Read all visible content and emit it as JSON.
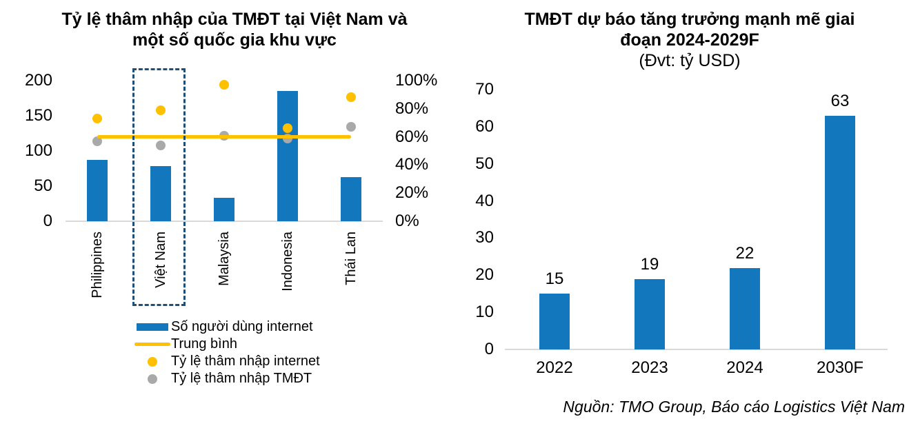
{
  "source_note": "Nguồn: TMO Group, Báo cáo Logistics Việt Nam",
  "colors": {
    "bar_blue": "#1377BD",
    "line_yellow": "#FFC000",
    "dot_gray": "#A9A9A9",
    "highlight_border": "#1F4E79",
    "axis_line": "#D9D9D9",
    "text": "#000000"
  },
  "chart_data": [
    {
      "id": "penetration_combo",
      "type": "combo",
      "title": "Tỷ lệ thâm nhập của TMĐT tại Việt Nam và một số quốc gia khu vực",
      "title_lines": [
        "Tỷ lệ thâm nhập của TMĐT tại Việt Nam và",
        "một số quốc gia khu vực"
      ],
      "categories": [
        "Philippines",
        "Việt Nam",
        "Malaysia",
        "Indonesia",
        "Thái Lan"
      ],
      "highlighted_category": "Việt Nam",
      "axes": {
        "left": {
          "ticks": [
            "200",
            "150",
            "100",
            "50",
            "0"
          ],
          "min": 0,
          "max": 200
        },
        "right": {
          "ticks": [
            "100%",
            "80%",
            "60%",
            "40%",
            "20%",
            "0%"
          ],
          "min": 0,
          "max": 100
        }
      },
      "grid": false,
      "legend_position": "bottom",
      "series": [
        {
          "name": "Số người dùng internet",
          "type": "bar",
          "axis": "left",
          "color_key": "blue",
          "values": [
            87,
            78,
            33,
            185,
            63
          ]
        },
        {
          "name": "Trung bình",
          "type": "line",
          "axis": "right",
          "color_key": "yellow",
          "values": [
            60,
            60,
            60,
            60,
            60
          ]
        },
        {
          "name": "Tỷ lệ thâm nhập internet",
          "type": "scatter",
          "axis": "right",
          "color_key": "yellow",
          "values": [
            73,
            79,
            97,
            66,
            88
          ]
        },
        {
          "name": "Tỷ lệ thâm nhập TMĐT",
          "type": "scatter",
          "axis": "right",
          "color_key": "gray",
          "values": [
            57,
            54,
            61,
            59,
            67
          ]
        }
      ],
      "legend": [
        {
          "label": "Số người dùng internet",
          "marker": "bar"
        },
        {
          "label": "Trung bình",
          "marker": "line"
        },
        {
          "label": "Tỷ lệ thâm nhập internet",
          "marker": "dot-yellow"
        },
        {
          "label": "Tỷ lệ thâm nhập TMĐT",
          "marker": "dot-gray"
        }
      ]
    },
    {
      "id": "forecast_bar",
      "type": "bar",
      "title": "TMĐT dự báo tăng trưởng mạnh mẽ giai đoạn 2024-2029F",
      "title_lines": [
        "TMĐT dự báo tăng trưởng mạnh mẽ giai",
        "đoạn 2024-2029F"
      ],
      "subtitle": "(Đvt: tỷ USD)",
      "categories": [
        "2022",
        "2023",
        "2024",
        "2030F"
      ],
      "values": [
        15,
        19,
        22,
        63
      ],
      "data_labels": [
        "15",
        "19",
        "22",
        "63"
      ],
      "yticks": [
        "70",
        "60",
        "50",
        "40",
        "30",
        "20",
        "10",
        "0"
      ],
      "ylim": [
        0,
        70
      ],
      "grid": false,
      "xlabel": "",
      "ylabel": ""
    }
  ]
}
